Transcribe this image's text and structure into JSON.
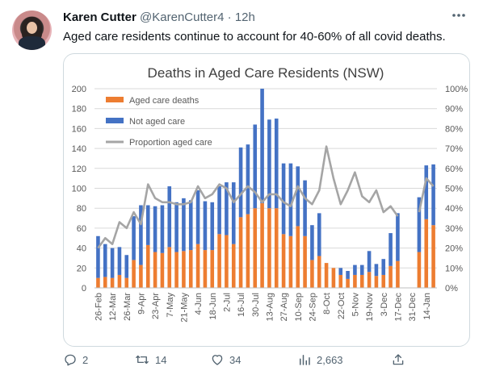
{
  "tweet": {
    "author_name": "Karen Cutter",
    "handle": "@KarenCutter4",
    "separator": "·",
    "time": "12h",
    "more_icon": "more-icon",
    "text": "Aged care residents continue to account for 40-60% of all covid deaths.",
    "actions": {
      "reply_count": "2",
      "retweet_count": "14",
      "like_count": "34",
      "views_count": "2,663"
    }
  },
  "chart_data": {
    "type": "bar",
    "title": "Deaths in Aged Care Residents (NSW)",
    "stacked": true,
    "ylim": [
      0,
      200
    ],
    "y_ticks": [
      "0",
      "20",
      "40",
      "60",
      "80",
      "100",
      "120",
      "140",
      "160",
      "180",
      "200"
    ],
    "y2lim": [
      0,
      100
    ],
    "y2_ticks": [
      "0%",
      "10%",
      "20%",
      "30%",
      "40%",
      "50%",
      "60%",
      "70%",
      "80%",
      "90%",
      "100%"
    ],
    "x_tick_labels": [
      "26-Feb",
      "12-Mar",
      "26-Mar",
      "9-Apr",
      "23-Apr",
      "7-May",
      "21-May",
      "4-Jun",
      "18-Jun",
      "2-Jul",
      "16-Jul",
      "30-Jul",
      "13-Aug",
      "27-Aug",
      "10-Sep",
      "24-Sep",
      "8-Oct",
      "22-Oct",
      "5-Nov",
      "19-Nov",
      "3-Dec",
      "17-Dec",
      "31-Dec",
      "14-Jan"
    ],
    "legend": [
      {
        "name": "Aged care deaths",
        "color": "#ed7d31"
      },
      {
        "name": "Not aged care",
        "color": "#4472c4"
      },
      {
        "name": "Proportion aged care",
        "color": "#a5a5a5"
      }
    ],
    "legend_position": "top-left",
    "series": [
      {
        "name": "Aged care deaths",
        "values": [
          10,
          11,
          10,
          13,
          10,
          28,
          23,
          43,
          36,
          35,
          41,
          36,
          37,
          38,
          44,
          38,
          38,
          54,
          53,
          44,
          71,
          74,
          80,
          85,
          80,
          80,
          54,
          52,
          62,
          52,
          28,
          32,
          25,
          20,
          13,
          9,
          13,
          13,
          16,
          12,
          13,
          22,
          27,
          null,
          null,
          36,
          69,
          63
        ]
      },
      {
        "name": "Not aged care",
        "values": [
          42,
          33,
          30,
          28,
          23,
          44,
          60,
          40,
          46,
          48,
          61,
          50,
          53,
          50,
          54,
          49,
          48,
          48,
          53,
          62,
          70,
          70,
          84,
          115,
          89,
          90,
          71,
          73,
          60,
          56,
          35,
          43,
          0,
          0,
          7,
          8,
          10,
          10,
          21,
          12,
          16,
          33,
          48,
          null,
          null,
          55,
          54,
          61
        ]
      },
      {
        "name": "Proportion aged care",
        "axis": "right",
        "values": [
          20,
          25,
          22,
          33,
          30,
          38,
          32,
          52,
          45,
          43,
          43,
          42,
          42,
          43,
          51,
          45,
          47,
          52,
          50,
          43,
          47,
          51,
          48,
          43,
          47,
          47,
          43,
          41,
          51,
          45,
          42,
          49,
          71,
          55,
          42,
          49,
          58,
          46,
          43,
          49,
          38,
          41,
          36,
          null,
          null,
          38,
          55,
          51
        ]
      }
    ]
  }
}
